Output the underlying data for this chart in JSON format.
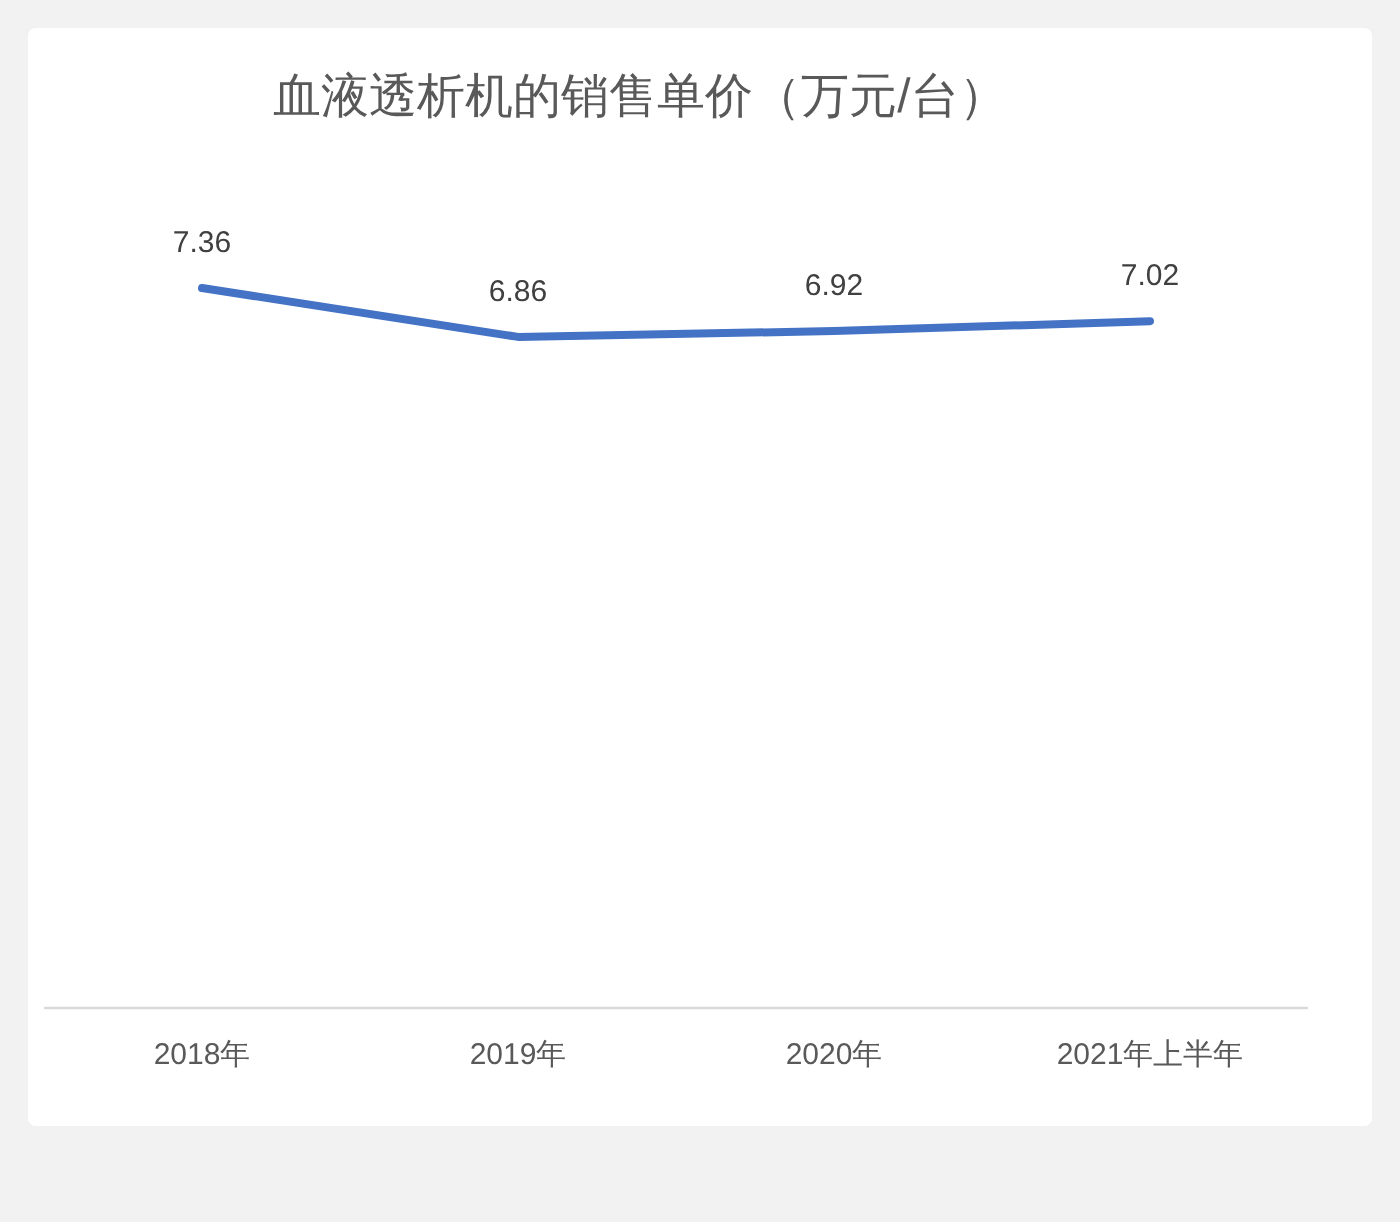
{
  "chart_data": {
    "type": "line",
    "title": "血液透析机的销售单价（万元/台）",
    "categories": [
      "2018年",
      "2019年",
      "2020年",
      "2021年上半年"
    ],
    "values": [
      7.36,
      6.86,
      6.92,
      7.02
    ],
    "color": "#4472c4",
    "data_labels": true
  }
}
